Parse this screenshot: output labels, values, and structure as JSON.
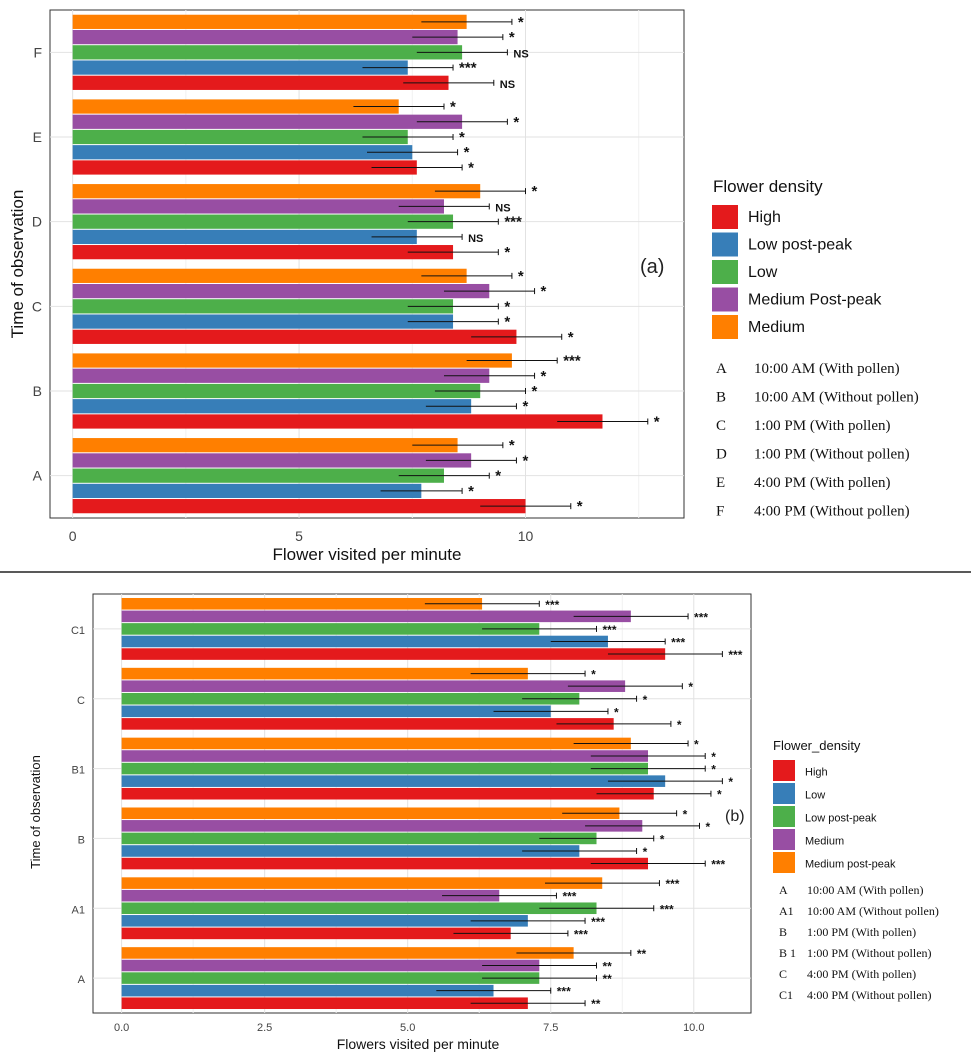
{
  "chart_data": [
    {
      "type": "bar",
      "panel_label": "(a)",
      "xlabel": "Flower visited per minute",
      "ylabel": "Time of observation",
      "xlim": [
        -0.5,
        13.5
      ],
      "xticks": [
        "0",
        "5",
        "10"
      ],
      "xtick_values": [
        0,
        5,
        10
      ],
      "grid": true,
      "legend_title": "Flower density",
      "legend_position": "right",
      "categories": [
        "A",
        "B",
        "C",
        "D",
        "E",
        "F"
      ],
      "category_descriptions": [
        {
          "code": "A",
          "text": "10:00 AM (With pollen)"
        },
        {
          "code": "B",
          "text": "10:00 AM (Without pollen)"
        },
        {
          "code": "C",
          "text": "1:00 PM (With pollen)"
        },
        {
          "code": "D",
          "text": "1:00 PM (Without pollen)"
        },
        {
          "code": "E",
          "text": "4:00 PM (With pollen)"
        },
        {
          "code": "F",
          "text": "4:00 PM (Without pollen)"
        }
      ],
      "series": [
        {
          "name": "High",
          "color": "#E41A1C",
          "values": [
            10.0,
            11.7,
            9.8,
            8.4,
            7.6,
            8.3
          ],
          "errors": [
            1.0,
            1.0,
            1.0,
            1.0,
            1.0,
            1.0
          ],
          "sig": [
            "*",
            "*",
            "*",
            "*",
            "*",
            "NS"
          ]
        },
        {
          "name": "Low post-peak",
          "color": "#377EB8",
          "values": [
            7.7,
            8.8,
            8.4,
            7.6,
            7.5,
            7.4
          ],
          "errors": [
            0.9,
            1.0,
            1.0,
            1.0,
            1.0,
            1.0
          ],
          "sig": [
            "*",
            "*",
            "*",
            "NS",
            "*",
            "***"
          ]
        },
        {
          "name": "Low",
          "color": "#4DAF4A",
          "values": [
            8.2,
            9.0,
            8.4,
            8.4,
            7.4,
            8.6
          ],
          "errors": [
            1.0,
            1.0,
            1.0,
            1.0,
            1.0,
            1.0
          ],
          "sig": [
            "*",
            "*",
            "*",
            "***",
            "*",
            "NS"
          ]
        },
        {
          "name": "Medium Post-peak",
          "color": "#984EA3",
          "values": [
            8.8,
            9.2,
            9.2,
            8.2,
            8.6,
            8.5
          ],
          "errors": [
            1.0,
            1.0,
            1.0,
            1.0,
            1.0,
            1.0
          ],
          "sig": [
            "*",
            "*",
            "*",
            "NS",
            "*",
            "*"
          ]
        },
        {
          "name": "Medium",
          "color": "#FF7F00",
          "values": [
            8.5,
            9.7,
            8.7,
            9.0,
            7.2,
            8.7
          ],
          "errors": [
            1.0,
            1.0,
            1.0,
            1.0,
            1.0,
            1.0
          ],
          "sig": [
            "*",
            "***",
            "*",
            "*",
            "*",
            "*"
          ]
        }
      ]
    },
    {
      "type": "bar",
      "panel_label": "(b)",
      "xlabel": "Flowers visited per minute",
      "ylabel": "Time of observation",
      "xlim": [
        -0.5,
        11.0
      ],
      "xticks": [
        "0.0",
        "2.5",
        "5.0",
        "7.5",
        "10.0"
      ],
      "xtick_values": [
        0,
        2.5,
        5.0,
        7.5,
        10.0
      ],
      "grid": true,
      "legend_title": "Flower_density",
      "legend_position": "right",
      "categories": [
        "A",
        "A1",
        "B",
        "B1",
        "C",
        "C1"
      ],
      "category_descriptions": [
        {
          "code": "A",
          "text": "10:00 AM (With pollen)"
        },
        {
          "code": "A1",
          "text": "10:00 AM (Without pollen)"
        },
        {
          "code": "B",
          "text": "1:00 PM (With pollen)"
        },
        {
          "code": "B 1",
          "text": "1:00 PM (Without pollen)"
        },
        {
          "code": "C",
          "text": "4:00 PM (With pollen)"
        },
        {
          "code": "C1",
          "text": "4:00 PM (Without pollen)"
        }
      ],
      "series": [
        {
          "name": "High",
          "color": "#E41A1C",
          "values": [
            7.1,
            6.8,
            9.2,
            9.3,
            8.6,
            9.5
          ],
          "errors": [
            1.0,
            1.0,
            1.0,
            1.0,
            1.0,
            1.0
          ],
          "sig": [
            "**",
            "***",
            "***",
            "*",
            "*",
            "***"
          ]
        },
        {
          "name": "Low",
          "color": "#377EB8",
          "values": [
            6.5,
            7.1,
            8.0,
            9.5,
            7.5,
            8.5
          ],
          "errors": [
            1.0,
            1.0,
            1.0,
            1.0,
            1.0,
            1.0
          ],
          "sig": [
            "***",
            "***",
            "*",
            "*",
            "*",
            "***"
          ]
        },
        {
          "name": "Low post-peak",
          "color": "#4DAF4A",
          "values": [
            7.3,
            8.3,
            8.3,
            9.2,
            8.0,
            7.3
          ],
          "errors": [
            1.0,
            1.0,
            1.0,
            1.0,
            1.0,
            1.0
          ],
          "sig": [
            "**",
            "***",
            "*",
            "*",
            "*",
            "***"
          ]
        },
        {
          "name": "Medium",
          "color": "#984EA3",
          "values": [
            7.3,
            6.6,
            9.1,
            9.2,
            8.8,
            8.9
          ],
          "errors": [
            1.0,
            1.0,
            1.0,
            1.0,
            1.0,
            1.0
          ],
          "sig": [
            "**",
            "***",
            "*",
            "*",
            "*",
            "***"
          ]
        },
        {
          "name": "Medium post-peak",
          "color": "#FF7F00",
          "values": [
            7.9,
            8.4,
            8.7,
            8.9,
            7.1,
            6.3
          ],
          "errors": [
            1.0,
            1.0,
            1.0,
            1.0,
            1.0,
            1.0
          ],
          "sig": [
            "**",
            "***",
            "*",
            "*",
            "*",
            "***"
          ]
        }
      ]
    }
  ]
}
